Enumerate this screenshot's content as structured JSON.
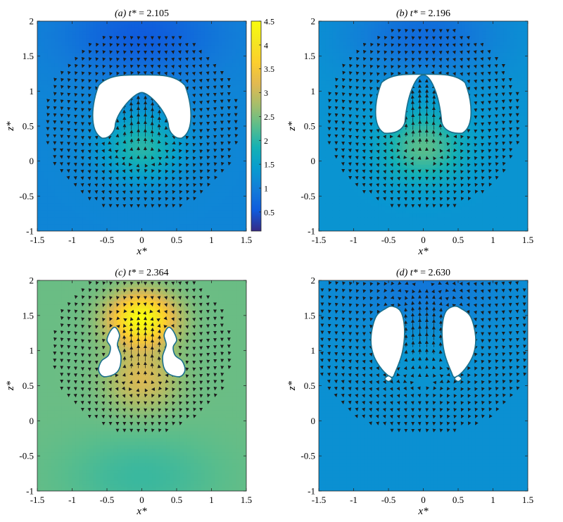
{
  "chart_data": [
    {
      "type": "heatmap",
      "panel": "a",
      "title": {
        "prefix": "(a) ",
        "var": "t*",
        "suffix": " = 2.105"
      },
      "xlabel": "x*",
      "ylabel": "z*",
      "xlim": [
        -1.5,
        1.5
      ],
      "ylim": [
        -1,
        2
      ],
      "xticks": [
        -1.5,
        -1,
        -0.5,
        0,
        0.5,
        1,
        1.5
      ],
      "yticks": [
        -1,
        -0.5,
        0,
        0.5,
        1,
        1.5,
        2
      ],
      "field": {
        "background": 1.1,
        "peak": 2.0,
        "peak_x": 0,
        "peak_z": 0.2,
        "peak_rx": 0.55,
        "peak_rz": 0.45,
        "low": 0.55,
        "low_z": 1.8
      },
      "bubbles": [
        {
          "shape": "cap",
          "cx": 0,
          "outer_top": 1.23,
          "outer_half_width": 0.72,
          "inner_top": 0.98,
          "inner_half_width": 0.38,
          "bottom": 0.33
        }
      ],
      "flow": {
        "center_x": 0,
        "center_z": 0.55,
        "strength": 1.0,
        "radius": 0.6
      }
    },
    {
      "type": "heatmap",
      "panel": "b",
      "title": {
        "prefix": "(b) ",
        "var": "t*",
        "suffix": " = 2.196"
      },
      "xlabel": "x*",
      "ylabel": "z*",
      "xlim": [
        -1.5,
        1.5
      ],
      "ylim": [
        -1,
        2
      ],
      "xticks": [
        -1.5,
        -1,
        -0.5,
        0,
        0.5,
        1,
        1.5
      ],
      "yticks": [
        -1,
        -0.5,
        0,
        0.5,
        1,
        1.5,
        2
      ],
      "field": {
        "background": 1.3,
        "peak": 2.3,
        "peak_x": 0,
        "peak_z": 0.2,
        "peak_rx": 0.6,
        "peak_rz": 0.5,
        "low": 0.75,
        "low_z": 1.8
      },
      "bubbles": [
        {
          "shape": "cap",
          "cx": 0,
          "outer_top": 1.24,
          "outer_half_width": 0.7,
          "inner_top": 1.23,
          "inner_half_width": 0.26,
          "bottom": 0.4
        }
      ],
      "flow": {
        "center_x": 0,
        "center_z": 0.6,
        "strength": 1.1,
        "radius": 0.6
      }
    },
    {
      "type": "heatmap",
      "panel": "c",
      "title": {
        "prefix": "(c) ",
        "var": "t*",
        "suffix": " = 2.364"
      },
      "xlabel": "x*",
      "ylabel": "z*",
      "xlim": [
        -1.5,
        1.5
      ],
      "ylim": [
        -1,
        2
      ],
      "xticks": [
        -1.5,
        -1,
        -0.5,
        0,
        0.5,
        1,
        1.5
      ],
      "yticks": [
        -1,
        -0.5,
        0,
        0.5,
        1,
        1.5,
        2
      ],
      "field": {
        "background": 2.4,
        "peak": 4.5,
        "peak_x": 0,
        "peak_z": 1.45,
        "peak_rx": 0.45,
        "peak_rz": 0.35,
        "low": 2.1,
        "low_z": -0.8,
        "secondary": 3.3,
        "secondary_z": 0.6
      },
      "bubbles": [
        {
          "shape": "ring-left",
          "points": [
            [
              -0.38,
              1.33
            ],
            [
              -0.32,
              1.22
            ],
            [
              -0.35,
              1.08
            ],
            [
              -0.3,
              0.92
            ],
            [
              -0.32,
              0.75
            ],
            [
              -0.4,
              0.66
            ],
            [
              -0.55,
              0.63
            ],
            [
              -0.62,
              0.72
            ],
            [
              -0.58,
              0.85
            ],
            [
              -0.48,
              0.93
            ],
            [
              -0.45,
              1.05
            ],
            [
              -0.5,
              1.15
            ],
            [
              -0.45,
              1.28
            ]
          ]
        },
        {
          "shape": "ring-right",
          "points": [
            [
              0.38,
              1.33
            ],
            [
              0.32,
              1.22
            ],
            [
              0.35,
              1.08
            ],
            [
              0.3,
              0.92
            ],
            [
              0.32,
              0.75
            ],
            [
              0.4,
              0.66
            ],
            [
              0.55,
              0.63
            ],
            [
              0.62,
              0.72
            ],
            [
              0.58,
              0.85
            ],
            [
              0.48,
              0.93
            ],
            [
              0.45,
              1.05
            ],
            [
              0.5,
              1.15
            ],
            [
              0.45,
              1.28
            ]
          ]
        }
      ],
      "flow": {
        "center_x": 0,
        "center_z": 1.0,
        "strength": 1.0,
        "radius": 0.55
      }
    },
    {
      "type": "heatmap",
      "panel": "d",
      "title": {
        "prefix": "(d) ",
        "var": "t*",
        "suffix": " = 2.630"
      },
      "xlabel": "x*",
      "ylabel": "z*",
      "xlim": [
        -1.5,
        1.5
      ],
      "ylim": [
        -1,
        2
      ],
      "xticks": [
        -1.5,
        -1,
        -0.5,
        0,
        0.5,
        1,
        1.5
      ],
      "yticks": [
        -1,
        -0.5,
        0,
        0.5,
        1,
        1.5,
        2
      ],
      "field": {
        "background": 1.25,
        "peak": 1.35,
        "peak_x": 0,
        "peak_z": 1.0,
        "peak_rx": 0.6,
        "peak_rz": 0.6,
        "low": 0.9,
        "low_z": 1.9
      },
      "bubbles": [
        {
          "shape": "drop-left",
          "points": [
            [
              -0.44,
              1.63
            ],
            [
              -0.54,
              1.6
            ],
            [
              -0.68,
              1.48
            ],
            [
              -0.75,
              1.2
            ],
            [
              -0.72,
              0.95
            ],
            [
              -0.6,
              0.74
            ],
            [
              -0.46,
              0.62
            ],
            [
              -0.4,
              0.7
            ],
            [
              -0.3,
              0.98
            ],
            [
              -0.27,
              1.3
            ],
            [
              -0.32,
              1.55
            ]
          ]
        },
        {
          "shape": "drop-right",
          "points": [
            [
              0.44,
              1.63
            ],
            [
              0.54,
              1.6
            ],
            [
              0.68,
              1.48
            ],
            [
              0.75,
              1.2
            ],
            [
              0.72,
              0.95
            ],
            [
              0.6,
              0.74
            ],
            [
              0.46,
              0.62
            ],
            [
              0.4,
              0.7
            ],
            [
              0.3,
              0.98
            ],
            [
              0.27,
              1.3
            ],
            [
              0.32,
              1.55
            ]
          ]
        },
        {
          "shape": "satellite",
          "points": [
            [
              -0.5,
              0.56
            ],
            [
              -0.45,
              0.6
            ],
            [
              -0.5,
              0.64
            ],
            [
              -0.55,
              0.6
            ]
          ]
        },
        {
          "shape": "satellite",
          "points": [
            [
              0.5,
              0.56
            ],
            [
              0.55,
              0.6
            ],
            [
              0.5,
              0.64
            ],
            [
              0.45,
              0.6
            ]
          ]
        }
      ],
      "flow": {
        "center_x": 0,
        "center_z": 1.25,
        "strength": 0.8,
        "radius": 0.7
      }
    }
  ],
  "colorbar": {
    "min": 0.1,
    "max": 4.5,
    "ticks": [
      0.5,
      1,
      1.5,
      2,
      2.5,
      3,
      3.5,
      4,
      4.5
    ],
    "colormap": "parula"
  },
  "colors": {
    "interface": "#1a6f8c",
    "arrow": "#1c1c1c",
    "bubble_fill": "#ffffff"
  }
}
